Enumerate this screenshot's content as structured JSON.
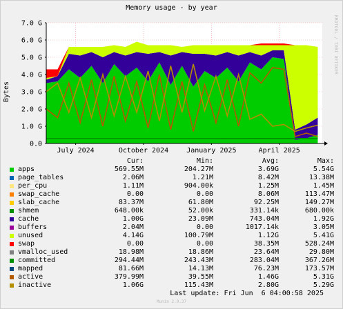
{
  "title": "Memory usage - by year",
  "side_tag": "RRDTOOL / TOBI OETIKER",
  "footer": "Munin 2.0.37",
  "last_update": "Last update: Fri Jun  6 04:00:58 2025",
  "legend_headers": {
    "cur": "Cur:",
    "min": "Min:",
    "avg": "Avg:",
    "max": "Max:"
  },
  "legend": [
    {
      "name": "apps",
      "color": "#00CC00",
      "cur": "569.55M",
      "min": "204.27M",
      "avg": "3.69G",
      "max": "5.54G"
    },
    {
      "name": "page_tables",
      "color": "#0066B3",
      "cur": "2.06M",
      "min": "1.21M",
      "avg": "8.42M",
      "max": "13.38M"
    },
    {
      "name": "per_cpu",
      "color": "#FFE680",
      "cur": "1.11M",
      "min": "904.00k",
      "avg": "1.25M",
      "max": "1.45M"
    },
    {
      "name": "swap_cache",
      "color": "#FF8000",
      "cur": "0.00",
      "min": "0.00",
      "avg": "8.06M",
      "max": "113.47M"
    },
    {
      "name": "slab_cache",
      "color": "#FFCC00",
      "cur": "83.37M",
      "min": "61.80M",
      "avg": "92.25M",
      "max": "149.27M"
    },
    {
      "name": "shmem",
      "color": "#008F00",
      "cur": "648.00k",
      "min": "52.00k",
      "avg": "331.14k",
      "max": "680.00k"
    },
    {
      "name": "cache",
      "color": "#330099",
      "cur": "1.00G",
      "min": "23.09M",
      "avg": "743.04M",
      "max": "1.92G"
    },
    {
      "name": "buffers",
      "color": "#990099",
      "cur": "2.04M",
      "min": "0.00",
      "avg": "1017.14k",
      "max": "3.05M"
    },
    {
      "name": "unused",
      "color": "#CCFF00",
      "cur": "4.14G",
      "min": "100.79M",
      "avg": "1.12G",
      "max": "5.41G"
    },
    {
      "name": "swap",
      "color": "#FF0000",
      "cur": "0.00",
      "min": "0.00",
      "avg": "38.35M",
      "max": "528.24M"
    },
    {
      "name": "vmalloc_used",
      "color": "#808080",
      "cur": "18.98M",
      "min": "18.86M",
      "avg": "23.64M",
      "max": "29.80M"
    },
    {
      "name": "committed",
      "color": "#008F00",
      "cur": "294.44M",
      "min": "243.43M",
      "avg": "283.04M",
      "max": "367.26M"
    },
    {
      "name": "mapped",
      "color": "#00487D",
      "cur": "81.66M",
      "min": "14.13M",
      "avg": "76.23M",
      "max": "173.57M"
    },
    {
      "name": "active",
      "color": "#B35A00",
      "cur": "379.99M",
      "min": "39.55M",
      "avg": "1.46G",
      "max": "5.31G"
    },
    {
      "name": "inactive",
      "color": "#B38F00",
      "cur": "1.06G",
      "min": "115.43M",
      "avg": "2.80G",
      "max": "5.29G"
    }
  ],
  "chart_data": {
    "type": "area",
    "title": "Memory usage - by year",
    "ylabel": "Bytes",
    "ylim": [
      0,
      7.0
    ],
    "y_unit": "G",
    "y_ticks": [
      "0.0",
      "1.0 G",
      "2.0 G",
      "3.0 G",
      "4.0 G",
      "5.0 G",
      "6.0 G",
      "7.0 G"
    ],
    "y_tick_values": [
      0,
      1,
      2,
      3,
      4,
      5,
      6,
      7
    ],
    "x_ticks": [
      "July 2024",
      "October 2024",
      "January 2025",
      "April 2025"
    ],
    "x_tick_positions": [
      1.3,
      4.3,
      7.3,
      10.3
    ],
    "xlim": [
      0,
      12.2
    ],
    "x_unit": "months since 2024-06-01",
    "grid": true,
    "series": [
      {
        "name": "apps",
        "x": [
          0,
          0.5,
          1,
          1.5,
          2,
          2.5,
          3,
          3.5,
          4,
          4.5,
          5,
          5.5,
          6,
          6.5,
          7,
          7.5,
          8,
          8.5,
          9,
          9.5,
          10,
          10.5,
          11,
          11.5,
          12
        ],
        "values": [
          3.5,
          3.6,
          4.3,
          3.8,
          4.5,
          3.5,
          4.6,
          3.9,
          4.4,
          3.6,
          4.7,
          3.4,
          4.5,
          3.3,
          4.2,
          3.8,
          4.4,
          3.6,
          4.7,
          4.3,
          5.0,
          4.9,
          0.2,
          0.3,
          0.5
        ]
      },
      {
        "name": "cache",
        "x": [
          0,
          0.5,
          1,
          1.5,
          2,
          2.5,
          3,
          3.5,
          4,
          4.5,
          5,
          5.5,
          6,
          6.5,
          7,
          7.5,
          8,
          8.5,
          9,
          9.5,
          10,
          10.5,
          11,
          11.5,
          12
        ],
        "values": [
          0.2,
          0.3,
          0.9,
          1.3,
          0.8,
          1.5,
          0.7,
          1.2,
          0.9,
          1.6,
          0.6,
          1.7,
          0.8,
          1.9,
          1.0,
          1.3,
          0.9,
          1.5,
          0.6,
          0.8,
          0.4,
          0.5,
          0.6,
          0.8,
          1.0
        ]
      },
      {
        "name": "unused",
        "x": [
          0,
          0.5,
          1,
          1.5,
          2,
          2.5,
          3,
          3.5,
          4,
          4.5,
          5,
          5.5,
          6,
          6.5,
          7,
          7.5,
          8,
          8.5,
          9,
          9.5,
          10,
          10.5,
          11,
          11.5,
          12
        ],
        "values": [
          0.1,
          0.0,
          0.4,
          0.5,
          0.3,
          0.6,
          0.4,
          0.5,
          0.6,
          0.5,
          0.4,
          0.6,
          0.3,
          0.5,
          0.5,
          0.6,
          0.4,
          0.6,
          0.4,
          0.6,
          0.3,
          0.3,
          4.9,
          4.6,
          4.1
        ]
      },
      {
        "name": "swap",
        "x": [
          0,
          0.5,
          1,
          1.5,
          2,
          2.5,
          3,
          3.5,
          4,
          4.5,
          5,
          5.5,
          6,
          6.5,
          7,
          7.5,
          8,
          8.5,
          9,
          9.5,
          10,
          10.5,
          11,
          11.5,
          12
        ],
        "values": [
          0.5,
          0.4,
          0.0,
          0.0,
          0.0,
          0.0,
          0.0,
          0.0,
          0.0,
          0.0,
          0.0,
          0.0,
          0.0,
          0.0,
          0.0,
          0.0,
          0.0,
          0.0,
          0.0,
          0.1,
          0.1,
          0.1,
          0.0,
          0.0,
          0.0
        ]
      },
      {
        "name": "active",
        "x": [
          0,
          0.5,
          1,
          1.5,
          2,
          2.5,
          3,
          3.5,
          4,
          4.5,
          5,
          5.5,
          6,
          6.5,
          7,
          7.5,
          8,
          8.5,
          9,
          9.5,
          10,
          10.5,
          11,
          11.5,
          12
        ],
        "values": [
          2.0,
          1.5,
          3.5,
          1.2,
          3.7,
          1.0,
          3.9,
          1.3,
          3.6,
          0.9,
          4.0,
          0.8,
          3.6,
          0.7,
          3.4,
          1.2,
          3.7,
          1.0,
          4.1,
          3.5,
          4.4,
          4.3,
          0.4,
          0.6,
          0.4
        ]
      },
      {
        "name": "inactive",
        "x": [
          0,
          0.5,
          1,
          1.5,
          2,
          2.5,
          3,
          3.5,
          4,
          4.5,
          5,
          5.5,
          6,
          6.5,
          7,
          7.5,
          8,
          8.5,
          9,
          9.5,
          10,
          10.5,
          11,
          11.5,
          12
        ],
        "values": [
          3.0,
          3.5,
          1.8,
          3.8,
          1.5,
          4.0,
          1.6,
          3.9,
          1.8,
          4.2,
          1.3,
          4.5,
          1.8,
          4.6,
          1.9,
          3.9,
          1.6,
          4.0,
          1.4,
          1.7,
          1.0,
          1.1,
          0.7,
          0.9,
          1.06
        ]
      },
      {
        "name": "committed",
        "x": [
          0,
          6,
          12
        ],
        "values": [
          0.28,
          0.28,
          0.29
        ]
      }
    ]
  }
}
